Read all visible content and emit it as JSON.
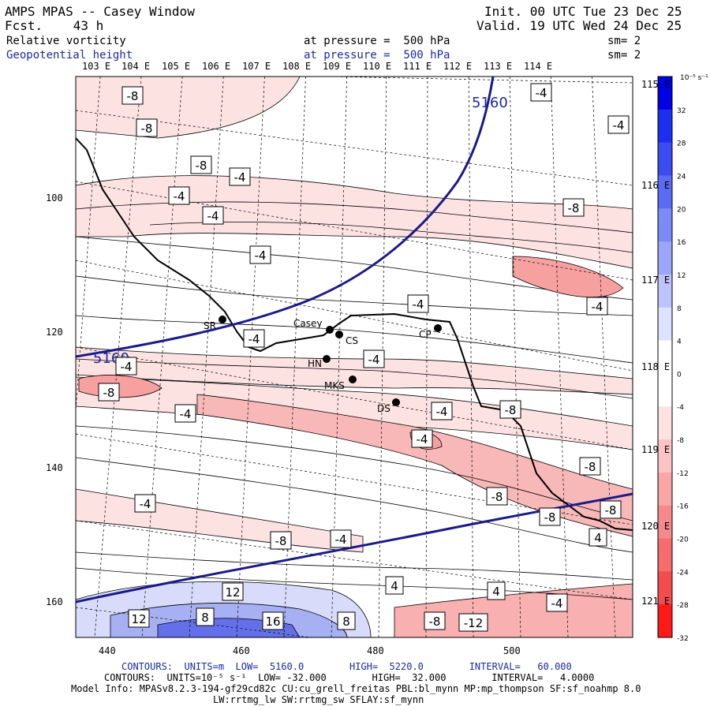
{
  "header": {
    "title": "AMPS MPAS -- Casey Window",
    "forecast": "Fcst.    43 h",
    "init": "Init. 00 UTC Tue 23 Dec 25",
    "valid": "Valid. 19 UTC Wed 24 Dec 25",
    "field1_name": "Relative vorticity",
    "field1_level": "at pressure =  500 hPa",
    "field1_sm": "sm= 2",
    "field2_name": "Geopotential height",
    "field2_level": "at pressure =  500 hPa",
    "field2_sm": "sm= 2"
  },
  "longitude_ticks": [
    "103 E",
    "104 E",
    "105 E",
    "106 E",
    "107 E",
    "108 E",
    "109 E",
    "110 E",
    "111 E",
    "112 E",
    "113 E",
    "114 E"
  ],
  "latitude_ticks": [
    "115 E",
    "116 E",
    "117 E",
    "118 E",
    "119 E",
    "120 E",
    "121 E"
  ],
  "y_axis": {
    "ticks": [
      "100",
      "120",
      "140",
      "160"
    ]
  },
  "x_axis": {
    "ticks": [
      "440",
      "460",
      "480",
      "500"
    ]
  },
  "colorbar": {
    "unit": "10⁻⁵ s⁻¹",
    "labels": [
      "32",
      "28",
      "24",
      "20",
      "16",
      "12",
      "8",
      "4",
      "0",
      "-4",
      "-8",
      "-12",
      "-16",
      "-20",
      "-24",
      "-28",
      "-32"
    ],
    "colors": [
      "#0000e6",
      "#1c2ef0",
      "#3a4cf2",
      "#5a6cf4",
      "#7a8af6",
      "#9aa6f8",
      "#bcc4fb",
      "#dde2fd",
      "#ffffff",
      "#ffffff",
      "#fde2e2",
      "#fbc4c4",
      "#f8a6a6",
      "#f68a8a",
      "#f46c6c",
      "#f24c4c",
      "#ff1a1a"
    ]
  },
  "stations": [
    {
      "name": "SR"
    },
    {
      "name": "Casey"
    },
    {
      "name": "CS"
    },
    {
      "name": "HN"
    },
    {
      "name": "MKS"
    },
    {
      "name": "DS"
    },
    {
      "name": "CP"
    }
  ],
  "contour_labels": {
    "height": [
      "5160",
      "5160"
    ],
    "vorticity": [
      "-8",
      "-8",
      "-8",
      "-4",
      "-4",
      "-4",
      "-4",
      "-4",
      "-4",
      "-4",
      "-4",
      "-4",
      "-8",
      "-4",
      "-4",
      "-8",
      "-4",
      "-8",
      "-8",
      "-4",
      "-8",
      "-8",
      "-4",
      "-8",
      "-8",
      "-4",
      "-4",
      "4",
      "4",
      "4",
      "-4",
      "12",
      "12",
      "8",
      "16",
      "8",
      "-8",
      "-12"
    ]
  },
  "footer": {
    "line1": "CONTOURS:  UNITS=m  LOW=  5160.0        HIGH=  5220.0        INTERVAL=   60.000",
    "line2": "CONTOURS:  UNITS=10⁻⁵ s⁻¹  LOW= -32.000        HIGH=  32.000        INTERVAL=   4.0000",
    "line3": "Model Info: MPASv8.2.3-194-gf29cd82c CU:cu_grell_freitas PBL:bl_mynn MP:mp_thompson SF:sf_noahmp 8.0",
    "line4": "LW:rrtmg_lw SW:rrtmg_sw SFLAY:sf_mynn"
  }
}
